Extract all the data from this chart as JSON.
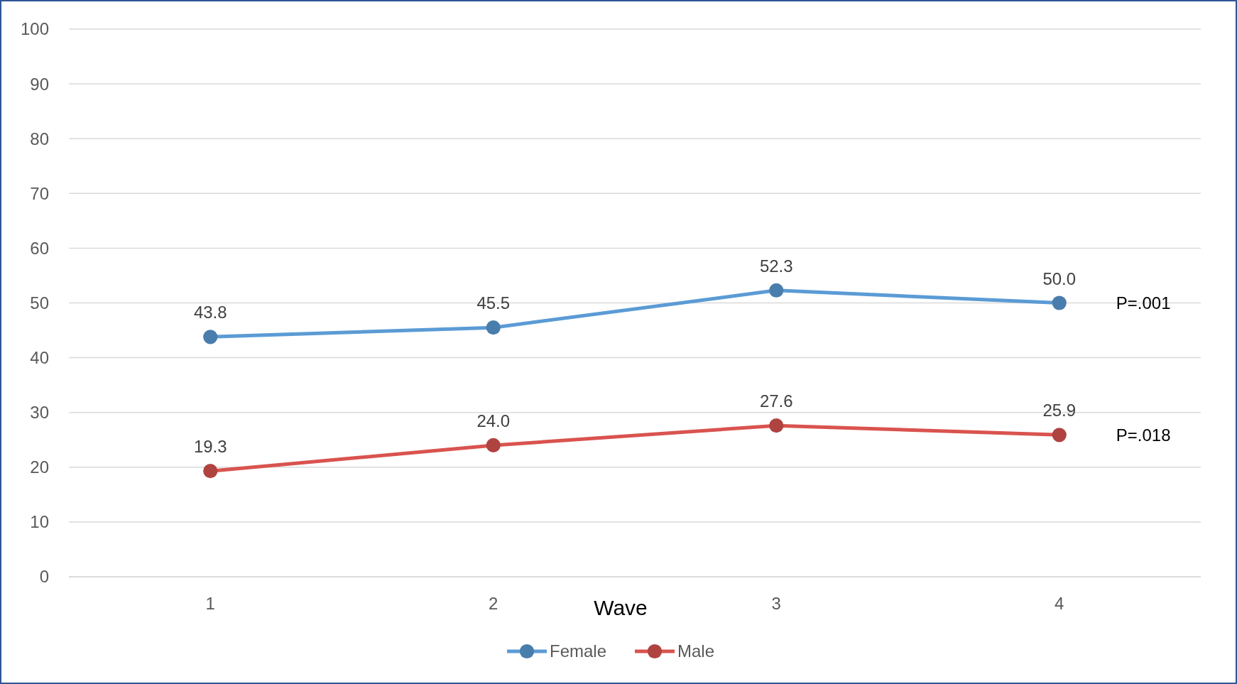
{
  "chart_data": {
    "type": "line",
    "xlabel": "Wave",
    "categories": [
      "1",
      "2",
      "3",
      "4"
    ],
    "series": [
      {
        "name": "Female",
        "color": "#5b9bd5",
        "values": [
          43.8,
          45.5,
          52.3,
          50.0
        ],
        "value_labels": [
          "43.8",
          "45.5",
          "52.3",
          "50.0"
        ]
      },
      {
        "name": "Male",
        "color": "#d9534f",
        "values": [
          19.3,
          24.0,
          27.6,
          25.9
        ],
        "value_labels": [
          "19.3",
          "24.0",
          "27.6",
          "25.9"
        ]
      }
    ],
    "ylim": [
      0,
      100
    ],
    "yticks": [
      0,
      10,
      20,
      30,
      40,
      50,
      60,
      70,
      80,
      90,
      100
    ],
    "grid": "y",
    "legend": "bottom",
    "marker": "circle",
    "line_style": "solid",
    "annotations": [
      "P=.001",
      "P=.018"
    ]
  }
}
